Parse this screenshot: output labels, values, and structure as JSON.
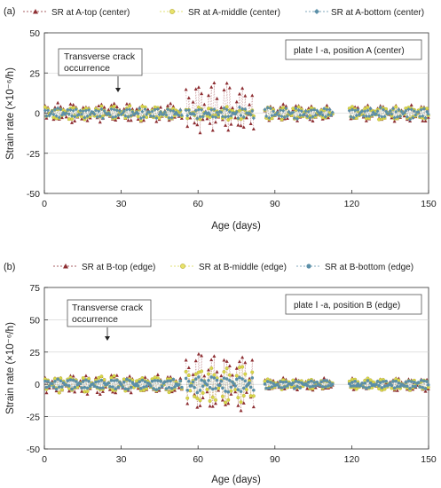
{
  "chart_data": [
    {
      "panel_label": "(a)",
      "type": "scatter",
      "xlabel": "Age (days)",
      "ylabel": "Strain rate (×10⁻⁶/h)",
      "xlim": [
        0,
        150
      ],
      "ylim": [
        -50,
        50
      ],
      "xticks": [
        "0",
        "30",
        "60",
        "90",
        "120",
        "150"
      ],
      "yticks": [
        "50",
        "25",
        "0",
        "-25",
        "-50"
      ],
      "ytick_values": [
        50,
        25,
        0,
        -25,
        -50
      ],
      "xtick_values": [
        0,
        30,
        60,
        90,
        120,
        150
      ],
      "legend_placement": "top",
      "series": [
        {
          "name": "SR at A-top (center)",
          "color": "#8e2f33",
          "marker": "triangle"
        },
        {
          "name": "SR at A-middle (center)",
          "color": "#d9d84a",
          "marker": "circle"
        },
        {
          "name": "SR at A-bottom (center)",
          "color": "#5b8fa8",
          "marker": "diamond"
        }
      ],
      "annotation": {
        "text_lines": [
          "Transverse crack",
          "occurrence"
        ],
        "x": 29,
        "y": 18
      },
      "box_label": "plate Ⅰ -a, position A (center)",
      "envelope": {
        "x_breaks": [
          0,
          29,
          54,
          82,
          86,
          113,
          119,
          150
        ],
        "top_max": [
          6,
          6,
          20,
          22,
          5,
          25,
          5,
          25
        ],
        "top_min": [
          -6,
          -6,
          -12,
          -15,
          -5,
          -28,
          -5,
          -30
        ],
        "middle_max": [
          4,
          4,
          4,
          4,
          4,
          6,
          4,
          8
        ],
        "middle_min": [
          -4,
          -4,
          -4,
          -4,
          -4,
          -10,
          -4,
          -12
        ],
        "bottom_max": [
          3,
          3,
          3,
          3,
          3,
          3,
          3,
          3
        ],
        "bottom_min": [
          -3,
          -3,
          -3,
          -3,
          -3,
          -25,
          -3,
          -12
        ],
        "gaps": [
          [
            54,
            55
          ],
          [
            82,
            86
          ],
          [
            113,
            119
          ]
        ]
      }
    },
    {
      "panel_label": "(b)",
      "type": "scatter",
      "xlabel": "Age (days)",
      "ylabel": "Strain rate (×10⁻⁶/h)",
      "xlim": [
        0,
        150
      ],
      "ylim": [
        -50,
        75
      ],
      "xticks": [
        "0",
        "30",
        "60",
        "90",
        "120",
        "150"
      ],
      "yticks": [
        "75",
        "50",
        "25",
        "0",
        "-25",
        "-50"
      ],
      "ytick_values": [
        75,
        50,
        25,
        0,
        -25,
        -50
      ],
      "xtick_values": [
        0,
        30,
        60,
        90,
        120,
        150
      ],
      "legend_placement": "top",
      "series": [
        {
          "name": "SR at B-top (edge)",
          "color": "#8e2f33",
          "marker": "triangle"
        },
        {
          "name": "SR at B-middle (edge)",
          "color": "#d9d84a",
          "marker": "circle"
        },
        {
          "name": "SR at B-bottom (edge)",
          "color": "#5b8fa8",
          "marker": "circle"
        }
      ],
      "annotation": {
        "text_lines": [
          "Transverse crack",
          "occurrence"
        ],
        "x": 26,
        "y": 35
      },
      "box_label": "plate Ⅰ -a, position B (edge)",
      "envelope": {
        "x_breaks": [
          0,
          25,
          54,
          82,
          86,
          113,
          119,
          150
        ],
        "top_max": [
          8,
          8,
          28,
          18,
          5,
          18,
          5,
          18
        ],
        "top_min": [
          -8,
          -8,
          -22,
          -12,
          -5,
          -12,
          -5,
          -10
        ],
        "middle_max": [
          6,
          6,
          14,
          10,
          4,
          10,
          4,
          8
        ],
        "middle_min": [
          -6,
          -6,
          -16,
          -10,
          -4,
          -10,
          -4,
          -8
        ],
        "bottom_max": [
          4,
          4,
          6,
          5,
          3,
          5,
          3,
          4
        ],
        "bottom_min": [
          -4,
          -4,
          -6,
          -5,
          -3,
          -5,
          -3,
          -4
        ],
        "gaps": [
          [
            54,
            55
          ],
          [
            82,
            86
          ],
          [
            113,
            119
          ]
        ]
      }
    }
  ]
}
